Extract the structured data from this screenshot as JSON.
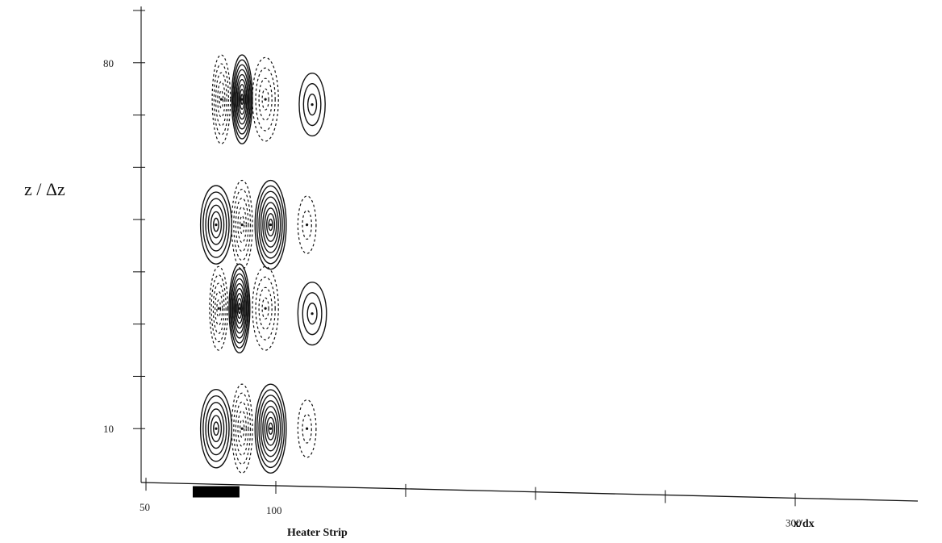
{
  "chart_data": {
    "type": "contour",
    "xlabel": "x/dx",
    "ylabel": "z / Δz",
    "annotation": "Heater Strip",
    "x_ticks": [
      {
        "value": 50,
        "label": "50"
      },
      {
        "value": 100,
        "label": "100"
      },
      {
        "value": 150,
        "label": ""
      },
      {
        "value": 200,
        "label": ""
      },
      {
        "value": 250,
        "label": ""
      },
      {
        "value": 300,
        "label": "300"
      }
    ],
    "y_ticks": [
      {
        "value": 10,
        "label": "10"
      },
      {
        "value": 20,
        "label": ""
      },
      {
        "value": 30,
        "label": ""
      },
      {
        "value": 40,
        "label": ""
      },
      {
        "value": 50,
        "label": ""
      },
      {
        "value": 60,
        "label": ""
      },
      {
        "value": 70,
        "label": ""
      },
      {
        "value": 80,
        "label": "80"
      },
      {
        "value": 90,
        "label": ""
      }
    ],
    "xlim": [
      0,
      300
    ],
    "ylim": [
      0,
      90
    ],
    "heater_strip": {
      "x_start": 68,
      "x_end": 86
    },
    "grid": false,
    "colors": {
      "solid_contour": "#111111",
      "dashed_contour": "#111111",
      "heater": "#000000"
    },
    "contour_cells": [
      {
        "x": 87,
        "z": 73,
        "rx": 4,
        "rz": 8.5,
        "style": "solid",
        "levels": 9
      },
      {
        "x": 79,
        "z": 73,
        "rx": 3.5,
        "rz": 8.5,
        "style": "dashed",
        "levels": 5
      },
      {
        "x": 96,
        "z": 73,
        "rx": 5,
        "rz": 8,
        "style": "dashed",
        "levels": 4
      },
      {
        "x": 114,
        "z": 72,
        "rx": 5,
        "rz": 6,
        "style": "solid",
        "levels": 3
      },
      {
        "x": 77,
        "z": 49,
        "rx": 6,
        "rz": 7.5,
        "style": "solid",
        "levels": 6
      },
      {
        "x": 87,
        "z": 49,
        "rx": 4,
        "rz": 8.5,
        "style": "dashed",
        "levels": 5
      },
      {
        "x": 98,
        "z": 49,
        "rx": 6,
        "rz": 8.5,
        "style": "solid",
        "levels": 8
      },
      {
        "x": 112,
        "z": 49,
        "rx": 3.5,
        "rz": 5.5,
        "style": "dashed",
        "levels": 2
      },
      {
        "x": 86,
        "z": 33,
        "rx": 4,
        "rz": 8.5,
        "style": "solid",
        "levels": 9
      },
      {
        "x": 78,
        "z": 33,
        "rx": 3.5,
        "rz": 8,
        "style": "dashed",
        "levels": 5
      },
      {
        "x": 96,
        "z": 33,
        "rx": 5,
        "rz": 8,
        "style": "dashed",
        "levels": 4
      },
      {
        "x": 114,
        "z": 32,
        "rx": 5.5,
        "rz": 6,
        "style": "solid",
        "levels": 3
      },
      {
        "x": 77,
        "z": 10,
        "rx": 6,
        "rz": 7.5,
        "style": "solid",
        "levels": 6
      },
      {
        "x": 87,
        "z": 10,
        "rx": 4,
        "rz": 8.5,
        "style": "dashed",
        "levels": 5
      },
      {
        "x": 98,
        "z": 10,
        "rx": 6,
        "rz": 8.5,
        "style": "solid",
        "levels": 8
      },
      {
        "x": 112,
        "z": 10,
        "rx": 3.5,
        "rz": 5.5,
        "style": "dashed",
        "levels": 2
      }
    ]
  }
}
